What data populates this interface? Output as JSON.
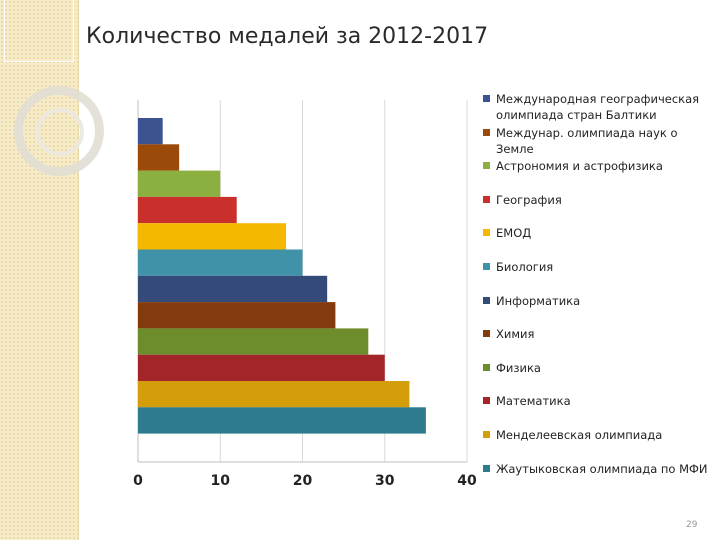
{
  "slide": {
    "title": "Количество медалей за 2012-2017",
    "page_number": "29"
  },
  "chart_data": {
    "type": "bar",
    "orientation": "horizontal",
    "title": "",
    "xlabel": "",
    "ylabel": "",
    "xlim": [
      0,
      40
    ],
    "x_ticks": [
      0,
      10,
      20,
      30,
      40
    ],
    "grid": true,
    "legend_position": "right",
    "series": [
      {
        "name": "Международная географическая олимпиада стран Балтики",
        "value": 3,
        "color": "#3b5390"
      },
      {
        "name": "Междунар. олимпиада наук о Земле",
        "value": 5,
        "color": "#9c4a0a"
      },
      {
        "name": "Астрономия и астрофизика",
        "value": 10,
        "color": "#8bb040"
      },
      {
        "name": "География",
        "value": 12,
        "color": "#c9302c"
      },
      {
        "name": "ЕМОД",
        "value": 18,
        "color": "#f5b800"
      },
      {
        "name": "Биология",
        "value": 20,
        "color": "#3f92a8"
      },
      {
        "name": "Информатика",
        "value": 23,
        "color": "#344a78"
      },
      {
        "name": "Химия",
        "value": 24,
        "color": "#833a0c"
      },
      {
        "name": "Физика",
        "value": 28,
        "color": "#6d8c2c"
      },
      {
        "name": "Математика",
        "value": 30,
        "color": "#a3252a"
      },
      {
        "name": "Менделеевская олимпиада",
        "value": 33,
        "color": "#d39e09"
      },
      {
        "name": "Жаутыковская олимпиада по МФИ",
        "value": 35,
        "color": "#2e7a8e"
      }
    ]
  }
}
